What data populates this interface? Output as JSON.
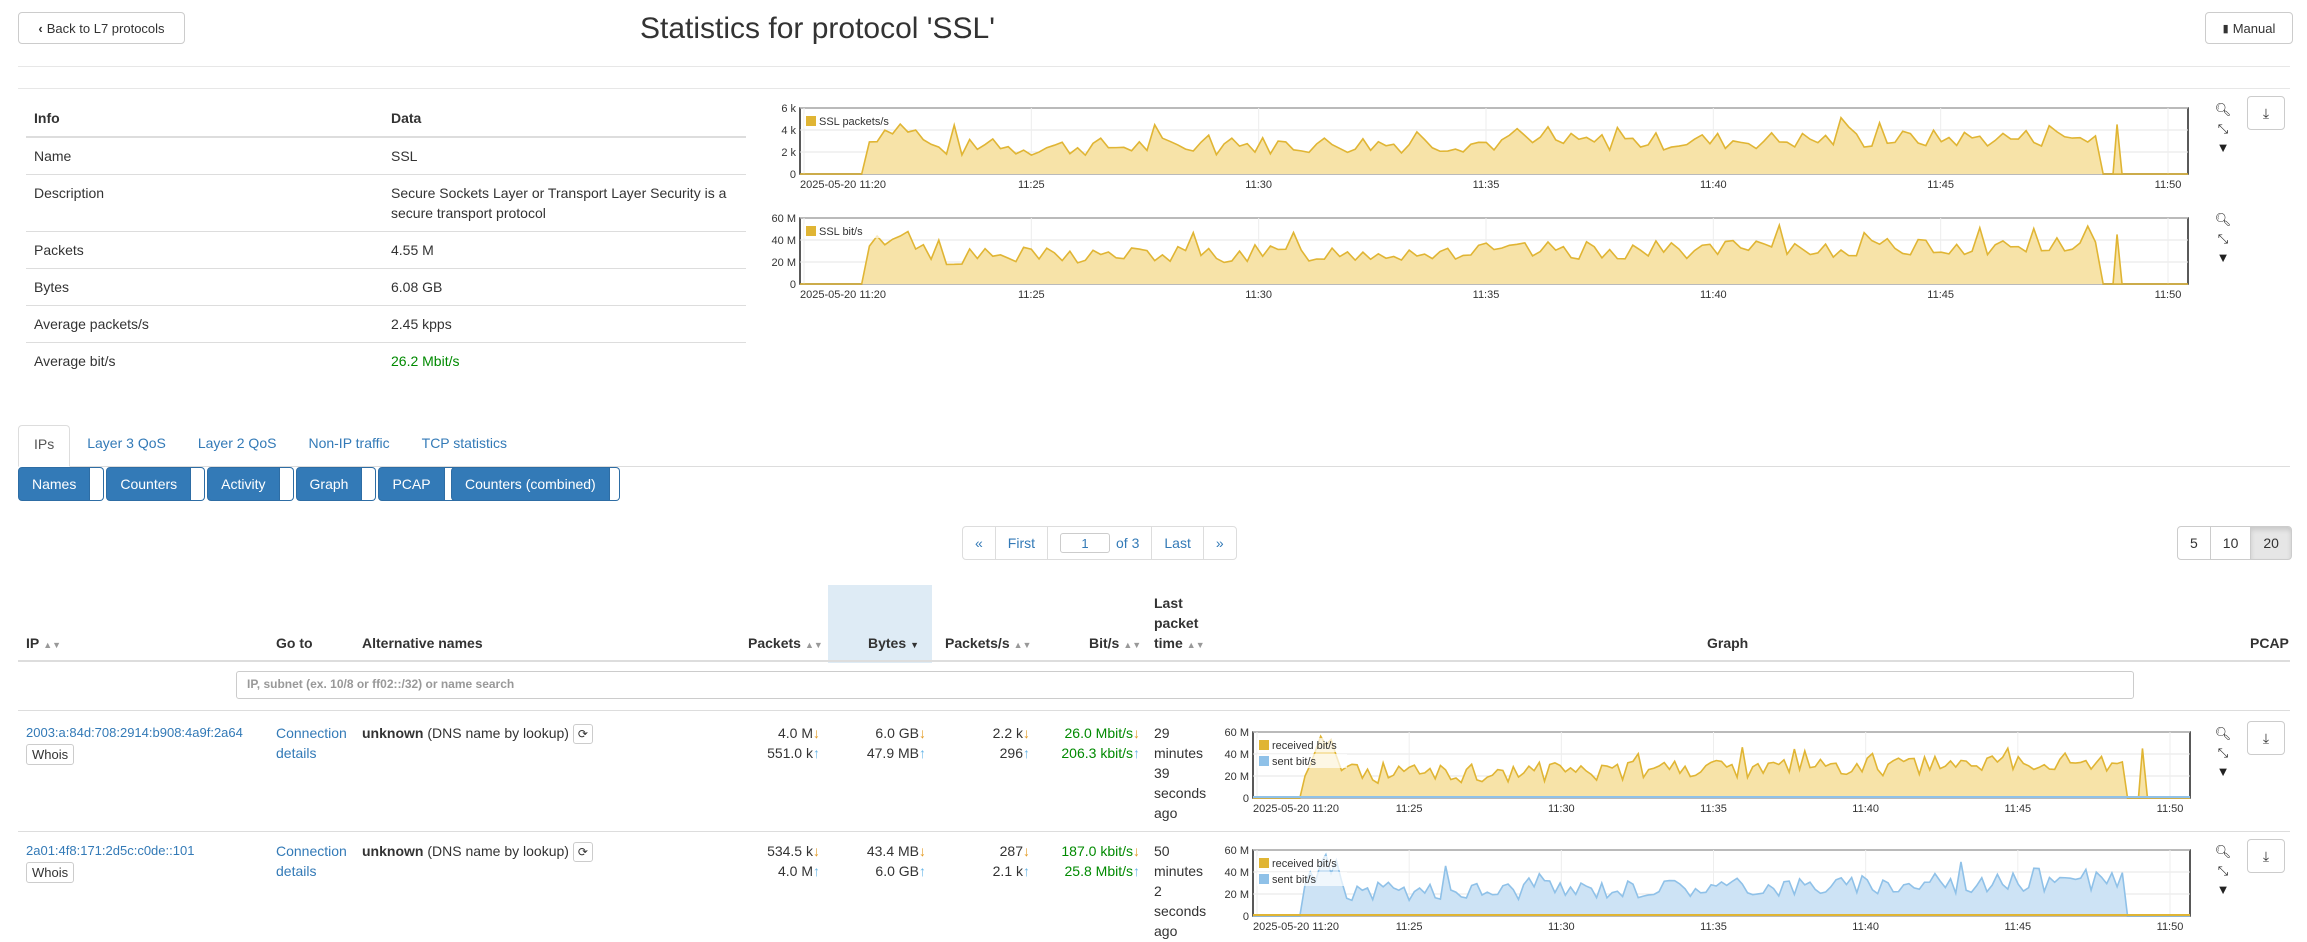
{
  "header": {
    "back_label": "Back to L7 protocols",
    "title": "Statistics for protocol 'SSL'",
    "manual_label": "Manual"
  },
  "info": {
    "headers": [
      "Info",
      "Data"
    ],
    "rows": [
      {
        "key": "Name",
        "value": "SSL"
      },
      {
        "key": "Description",
        "value": "Secure Sockets Layer or Transport Layer Security is a secure transport protocol"
      },
      {
        "key": "Packets",
        "value": "4.55 M"
      },
      {
        "key": "Bytes",
        "value": "6.08 GB"
      },
      {
        "key": "Average packets/s",
        "value": "2.45 kpps"
      },
      {
        "key": "Average bit/s",
        "value": "26.2 Mbit/s"
      }
    ]
  },
  "graphs": {
    "x_ticks": [
      "2025-05-20 11:20",
      "11:25",
      "11:30",
      "11:35",
      "11:40",
      "11:45",
      "11:50"
    ],
    "packets": {
      "legend": "SSL packets/s",
      "y_ticks": [
        "6 k",
        "4 k",
        "2 k",
        "0"
      ]
    },
    "bits": {
      "legend": "SSL bit/s",
      "y_ticks": [
        "60 M",
        "40 M",
        "20 M",
        "0"
      ]
    },
    "host_y_ticks": [
      "60 M",
      "40 M",
      "20 M",
      "0"
    ],
    "host_legend_received": "received bit/s",
    "host_legend_sent": "sent bit/s",
    "color_fill": "#f7e3a8",
    "color_line": "#e0b534",
    "color_blue_fill": "#cde3f5",
    "color_blue_line": "#8fc1e8"
  },
  "tabs": [
    "IPs",
    "Layer 3 QoS",
    "Layer 2 QoS",
    "Non-IP traffic",
    "TCP statistics"
  ],
  "toggles": [
    "Names",
    "Counters",
    "Activity",
    "Graph",
    "PCAP"
  ],
  "toggle_combined": "Counters (combined)",
  "pagination": {
    "prev": "«",
    "first": "First",
    "page": "1",
    "of": "of 3",
    "last": "Last",
    "next": "»"
  },
  "page_sizes": [
    "5",
    "10",
    "20"
  ],
  "columns": {
    "ip": "IP",
    "goto": "Go to",
    "alt": "Alternative names",
    "packets": "Packets",
    "bytes": "Bytes",
    "pps": "Packets/s",
    "bits": "Bit/s",
    "last1": "Last",
    "last2": "packet",
    "last3": "time",
    "graph": "Graph",
    "pcap": "PCAP"
  },
  "search_placeholder": "IP, subnet (ex. 10/8 or ff02::/32) or name search",
  "rows": [
    {
      "ip": "2003:a:84d:708:2914:b908:4a9f:2a64",
      "whois": "Whois",
      "goto1": "Connection",
      "goto2": "details",
      "alt_bold": "unknown",
      "alt_rest": "(DNS name by lookup)",
      "packets_rx": "4.0 M",
      "packets_tx": "551.0 k",
      "bytes_rx": "6.0 GB",
      "bytes_tx": "47.9 MB",
      "pps_rx": "2.2 k",
      "pps_tx": "296",
      "bits_rx": "26.0 Mbit/s",
      "bits_tx": "206.3 kbit/s",
      "last": [
        "29",
        "minutes",
        "39",
        "seconds",
        "ago"
      ]
    },
    {
      "ip": "2a01:4f8:171:2d5c:c0de::101",
      "whois": "Whois",
      "goto1": "Connection",
      "goto2": "details",
      "alt_bold": "unknown",
      "alt_rest": "(DNS name by lookup)",
      "packets_rx": "534.5 k",
      "packets_tx": "4.0 M",
      "bytes_rx": "43.4 MB",
      "bytes_tx": "6.0 GB",
      "pps_rx": "287",
      "pps_tx": "2.1 k",
      "bits_rx": "187.0 kbit/s",
      "bits_tx": "25.8 Mbit/s",
      "last": [
        "50",
        "minutes",
        "2",
        "seconds",
        "ago"
      ]
    }
  ]
}
